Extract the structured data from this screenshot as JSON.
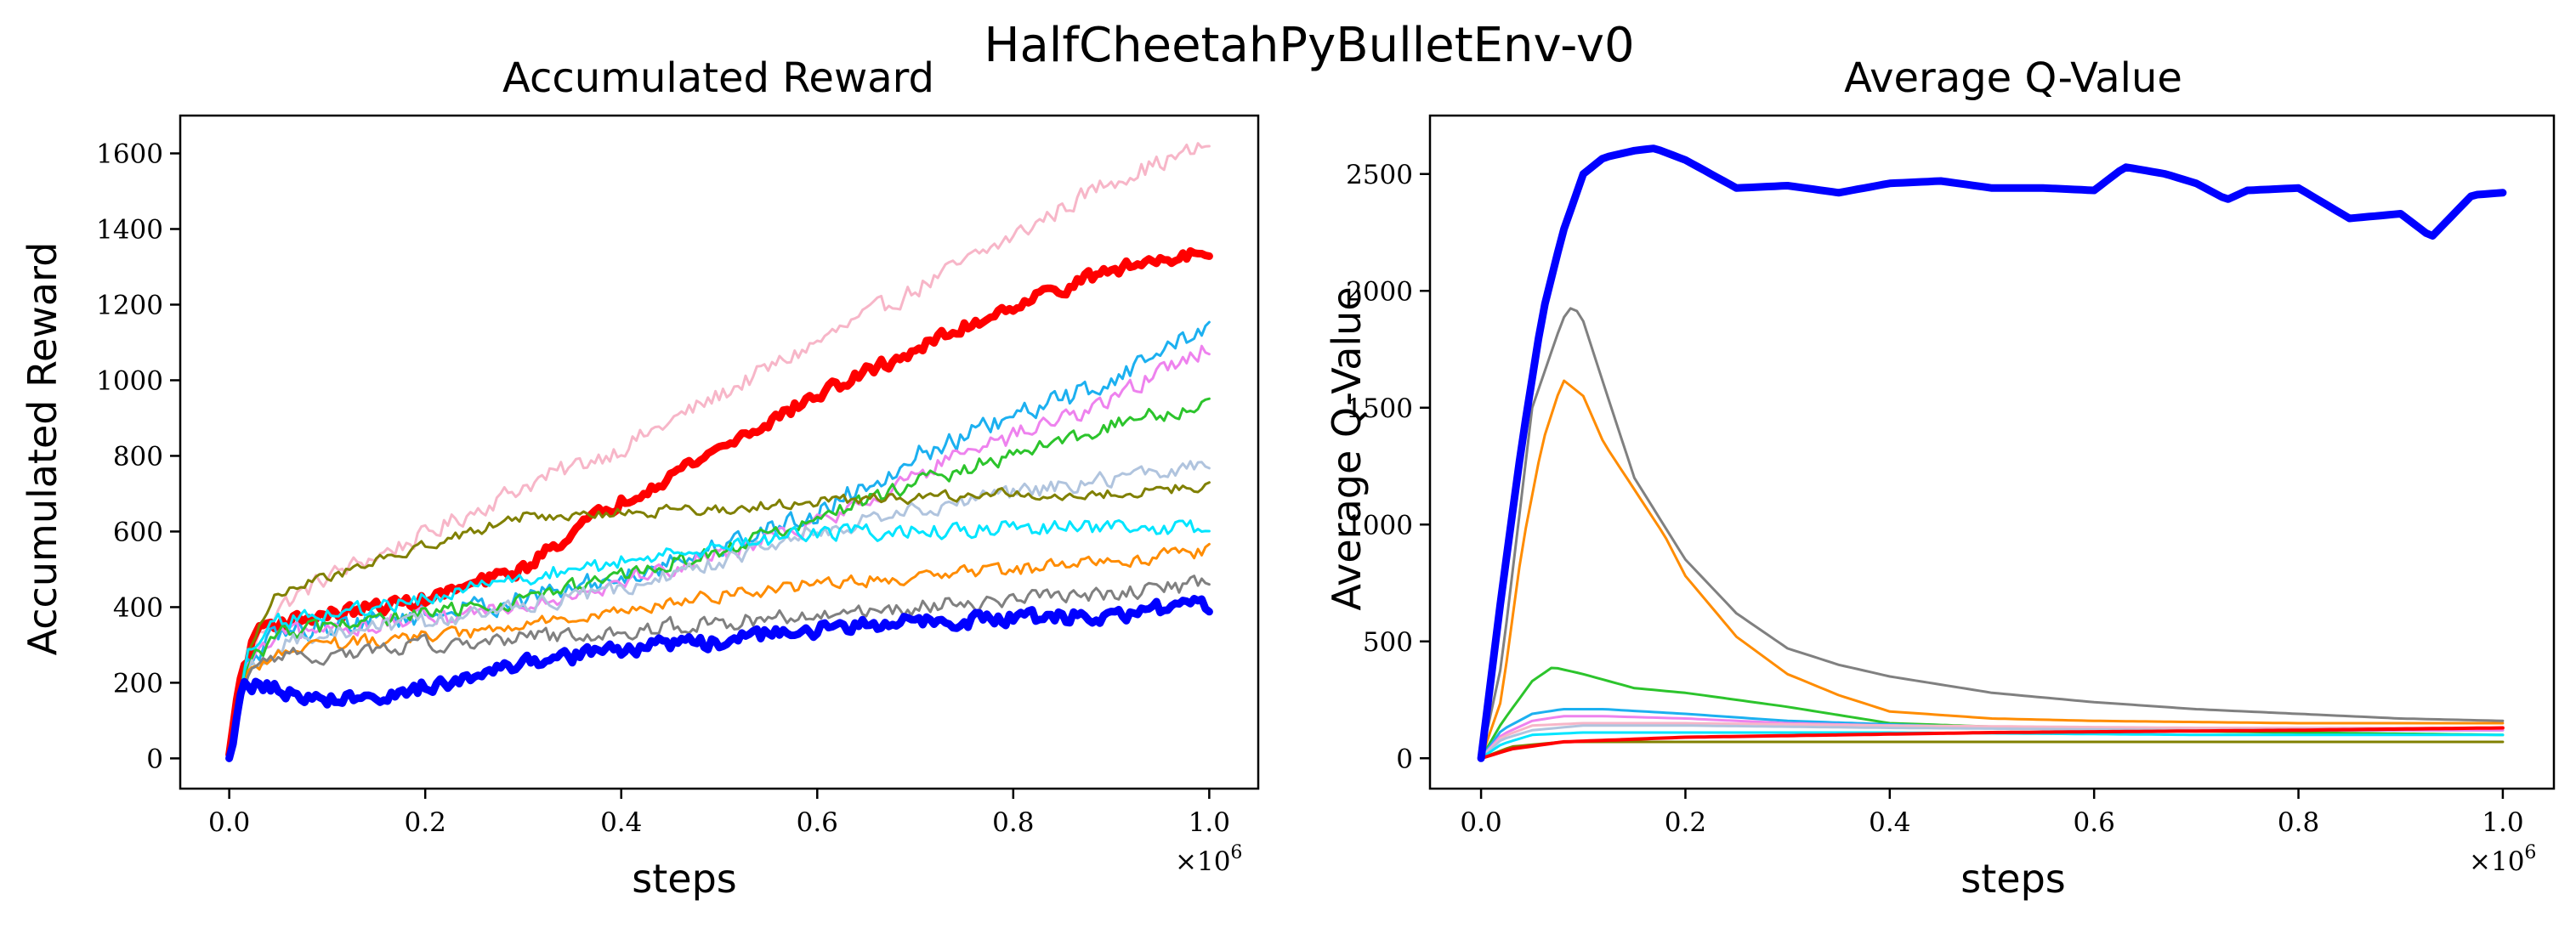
{
  "figure_title": "HalfCheetahPyBulletEnv-v0",
  "chart_data": [
    {
      "type": "line",
      "title": "Accumulated Reward",
      "xlabel": "steps",
      "ylabel": "Accumulated Reward",
      "x_multiplier": "×10",
      "x_multiplier_exp": "6",
      "xlim": [
        -0.05,
        1.05
      ],
      "ylim": [
        -80,
        1700
      ],
      "xticks": [
        0.0,
        0.2,
        0.4,
        0.6,
        0.8,
        1.0
      ],
      "xtick_labels": [
        "0.0",
        "0.2",
        "0.4",
        "0.6",
        "0.8",
        "1.0"
      ],
      "yticks": [
        0,
        200,
        400,
        600,
        800,
        1000,
        1200,
        1400,
        1600
      ],
      "ytick_labels": [
        "0",
        "200",
        "400",
        "600",
        "800",
        "1000",
        "1200",
        "1400",
        "1600"
      ],
      "grid": false,
      "series": [
        {
          "name": "pink",
          "color": "#f7b6c8",
          "width": 3,
          "noise": 35,
          "x": [
            0,
            0.02,
            0.05,
            0.1,
            0.2,
            0.3,
            0.4,
            0.5,
            0.6,
            0.7,
            0.8,
            0.9,
            1.0
          ],
          "y": [
            10,
            280,
            400,
            480,
            590,
            720,
            820,
            960,
            1100,
            1240,
            1380,
            1530,
            1620
          ]
        },
        {
          "name": "red",
          "color": "#ff0000",
          "width": 9,
          "noise": 25,
          "x": [
            0,
            0.01,
            0.03,
            0.05,
            0.1,
            0.2,
            0.3,
            0.35,
            0.4,
            0.5,
            0.6,
            0.7,
            0.8,
            0.9,
            1.0
          ],
          "y": [
            10,
            200,
            350,
            360,
            380,
            420,
            500,
            600,
            680,
            820,
            960,
            1080,
            1200,
            1290,
            1350
          ]
        },
        {
          "name": "deepskyblue",
          "color": "#1cb0f0",
          "width": 3,
          "noise": 40,
          "x": [
            0,
            0.02,
            0.05,
            0.1,
            0.2,
            0.3,
            0.4,
            0.5,
            0.6,
            0.7,
            0.8,
            0.9,
            1.0
          ],
          "y": [
            10,
            250,
            330,
            350,
            380,
            420,
            480,
            560,
            650,
            800,
            900,
            1000,
            1150
          ]
        },
        {
          "name": "violet",
          "color": "#ee82ee",
          "width": 3,
          "noise": 35,
          "x": [
            0,
            0.02,
            0.05,
            0.1,
            0.2,
            0.3,
            0.4,
            0.5,
            0.6,
            0.7,
            0.8,
            0.9,
            1.0
          ],
          "y": [
            10,
            250,
            320,
            340,
            370,
            410,
            470,
            540,
            620,
            750,
            850,
            950,
            1090
          ]
        },
        {
          "name": "limegreen",
          "color": "#2cc42c",
          "width": 3,
          "noise": 30,
          "x": [
            0,
            0.02,
            0.05,
            0.1,
            0.2,
            0.3,
            0.4,
            0.5,
            0.6,
            0.7,
            0.8,
            0.9,
            1.0
          ],
          "y": [
            10,
            250,
            330,
            350,
            380,
            420,
            480,
            550,
            630,
            730,
            800,
            880,
            940
          ]
        },
        {
          "name": "lightsteelblue",
          "color": "#b0c4de",
          "width": 3,
          "noise": 30,
          "x": [
            0,
            0.02,
            0.05,
            0.1,
            0.2,
            0.3,
            0.4,
            0.5,
            0.6,
            0.7,
            0.8,
            0.9,
            1.0
          ],
          "y": [
            10,
            240,
            300,
            330,
            360,
            400,
            450,
            520,
            600,
            660,
            700,
            740,
            780
          ]
        },
        {
          "name": "olive",
          "color": "#808000",
          "width": 3,
          "noise": 20,
          "x": [
            0,
            0.02,
            0.05,
            0.1,
            0.2,
            0.3,
            0.4,
            0.5,
            0.6,
            0.7,
            0.8,
            0.9,
            1.0
          ],
          "y": [
            10,
            300,
            440,
            480,
            560,
            640,
            650,
            660,
            680,
            690,
            700,
            700,
            720
          ]
        },
        {
          "name": "cyan",
          "color": "#00e5ff",
          "width": 3,
          "noise": 30,
          "x": [
            0,
            0.02,
            0.05,
            0.1,
            0.2,
            0.3,
            0.4,
            0.5,
            0.6,
            0.7,
            0.8,
            0.9,
            1.0
          ],
          "y": [
            10,
            280,
            360,
            380,
            420,
            480,
            520,
            560,
            600,
            600,
            610,
            610,
            610
          ]
        },
        {
          "name": "darkorange",
          "color": "#ff8c00",
          "width": 3,
          "noise": 25,
          "x": [
            0,
            0.02,
            0.05,
            0.1,
            0.2,
            0.3,
            0.4,
            0.5,
            0.6,
            0.7,
            0.8,
            0.9,
            1.0
          ],
          "y": [
            10,
            230,
            280,
            300,
            320,
            350,
            390,
            430,
            460,
            480,
            500,
            520,
            550
          ]
        },
        {
          "name": "gray",
          "color": "#808080",
          "width": 3,
          "noise": 30,
          "x": [
            0,
            0.02,
            0.05,
            0.1,
            0.2,
            0.3,
            0.4,
            0.5,
            0.6,
            0.7,
            0.8,
            0.9,
            1.0
          ],
          "y": [
            10,
            220,
            270,
            270,
            300,
            320,
            340,
            360,
            380,
            400,
            420,
            440,
            460
          ]
        },
        {
          "name": "blue",
          "color": "#0000ff",
          "width": 9,
          "noise": 28,
          "x": [
            0,
            0.005,
            0.01,
            0.015,
            0.03,
            0.05,
            0.1,
            0.15,
            0.2,
            0.3,
            0.4,
            0.5,
            0.6,
            0.7,
            0.8,
            0.9,
            1.0
          ],
          "y": [
            0,
            50,
            160,
            190,
            200,
            180,
            150,
            160,
            190,
            250,
            290,
            310,
            340,
            360,
            370,
            380,
            410
          ]
        }
      ]
    },
    {
      "type": "line",
      "title": "Average Q-Value",
      "xlabel": "steps",
      "ylabel": "Average Q-Value",
      "x_multiplier": "×10",
      "x_multiplier_exp": "6",
      "xlim": [
        -0.05,
        1.05
      ],
      "ylim": [
        -130,
        2750
      ],
      "xticks": [
        0.0,
        0.2,
        0.4,
        0.6,
        0.8,
        1.0
      ],
      "xtick_labels": [
        "0.0",
        "0.2",
        "0.4",
        "0.6",
        "0.8",
        "1.0"
      ],
      "yticks": [
        0,
        500,
        1000,
        1500,
        2000,
        2500
      ],
      "ytick_labels": [
        "0",
        "500",
        "1000",
        "1500",
        "2000",
        "2500"
      ],
      "grid": false,
      "series": [
        {
          "name": "olive",
          "color": "#808000",
          "width": 3,
          "noise": 0,
          "x": [
            0,
            0.03,
            0.08,
            0.2,
            0.5,
            1.0
          ],
          "y": [
            0,
            50,
            70,
            70,
            70,
            70
          ]
        },
        {
          "name": "limegreen",
          "color": "#2cc42c",
          "width": 3,
          "noise": 0,
          "x": [
            0,
            0.02,
            0.05,
            0.07,
            0.1,
            0.15,
            0.2,
            0.3,
            0.4,
            0.6,
            0.8,
            1.0
          ],
          "y": [
            0,
            150,
            330,
            390,
            360,
            300,
            280,
            220,
            150,
            120,
            110,
            100
          ]
        },
        {
          "name": "deepskyblue",
          "color": "#1cb0f0",
          "width": 3,
          "noise": 0,
          "x": [
            0,
            0.02,
            0.05,
            0.08,
            0.12,
            0.2,
            0.3,
            0.5,
            0.7,
            1.0
          ],
          "y": [
            0,
            120,
            190,
            210,
            210,
            190,
            160,
            130,
            120,
            120
          ]
        },
        {
          "name": "violet",
          "color": "#ee82ee",
          "width": 3,
          "noise": 0,
          "x": [
            0,
            0.02,
            0.05,
            0.08,
            0.12,
            0.2,
            0.3,
            0.5,
            0.7,
            1.0
          ],
          "y": [
            0,
            100,
            160,
            180,
            180,
            170,
            150,
            130,
            120,
            120
          ]
        },
        {
          "name": "pink",
          "color": "#f7b6c8",
          "width": 3,
          "noise": 0,
          "x": [
            0,
            0.02,
            0.05,
            0.1,
            0.2,
            0.4,
            0.7,
            1.0
          ],
          "y": [
            0,
            90,
            140,
            150,
            150,
            140,
            130,
            130
          ]
        },
        {
          "name": "lightsteelblue",
          "color": "#b0c4de",
          "width": 3,
          "noise": 0,
          "x": [
            0,
            0.02,
            0.05,
            0.1,
            0.2,
            0.4,
            0.7,
            1.0
          ],
          "y": [
            0,
            80,
            120,
            140,
            140,
            130,
            120,
            130
          ]
        },
        {
          "name": "cyan",
          "color": "#00e5ff",
          "width": 3,
          "noise": 0,
          "x": [
            0,
            0.02,
            0.05,
            0.1,
            0.2,
            0.4,
            0.7,
            1.0
          ],
          "y": [
            0,
            60,
            100,
            110,
            110,
            110,
            100,
            100
          ]
        },
        {
          "name": "red",
          "color": "#ff0000",
          "width": 4,
          "noise": 0,
          "x": [
            0,
            0.03,
            0.08,
            0.2,
            0.5,
            0.8,
            1.0
          ],
          "y": [
            0,
            40,
            70,
            90,
            110,
            120,
            130
          ]
        },
        {
          "name": "darkorange",
          "color": "#ff8c00",
          "width": 3,
          "noise": 0,
          "x": [
            0,
            0.02,
            0.04,
            0.06,
            0.08,
            0.1,
            0.12,
            0.15,
            0.18,
            0.2,
            0.25,
            0.3,
            0.35,
            0.4,
            0.5,
            0.6,
            0.8,
            1.0
          ],
          "y": [
            0,
            250,
            900,
            1350,
            1620,
            1550,
            1350,
            1150,
            950,
            780,
            520,
            360,
            270,
            200,
            170,
            160,
            150,
            150
          ]
        },
        {
          "name": "gray",
          "color": "#808080",
          "width": 3,
          "noise": 0,
          "x": [
            0,
            0.02,
            0.05,
            0.08,
            0.09,
            0.1,
            0.12,
            0.15,
            0.2,
            0.25,
            0.3,
            0.35,
            0.4,
            0.5,
            0.6,
            0.7,
            0.8,
            0.9,
            1.0
          ],
          "y": [
            0,
            400,
            1500,
            1880,
            1940,
            1870,
            1600,
            1200,
            850,
            620,
            470,
            400,
            350,
            280,
            240,
            210,
            190,
            170,
            160
          ]
        },
        {
          "name": "blue",
          "color": "#0000ff",
          "width": 9,
          "noise": 0,
          "x": [
            0,
            0.02,
            0.04,
            0.06,
            0.08,
            0.1,
            0.12,
            0.15,
            0.17,
            0.2,
            0.25,
            0.3,
            0.35,
            0.4,
            0.45,
            0.5,
            0.55,
            0.6,
            0.63,
            0.67,
            0.7,
            0.73,
            0.75,
            0.8,
            0.85,
            0.9,
            0.93,
            0.97,
            1.0
          ],
          "y": [
            0,
            700,
            1350,
            1900,
            2250,
            2500,
            2570,
            2600,
            2610,
            2560,
            2440,
            2450,
            2420,
            2460,
            2470,
            2440,
            2440,
            2430,
            2530,
            2500,
            2460,
            2390,
            2430,
            2440,
            2310,
            2330,
            2230,
            2410,
            2420
          ]
        }
      ]
    }
  ]
}
